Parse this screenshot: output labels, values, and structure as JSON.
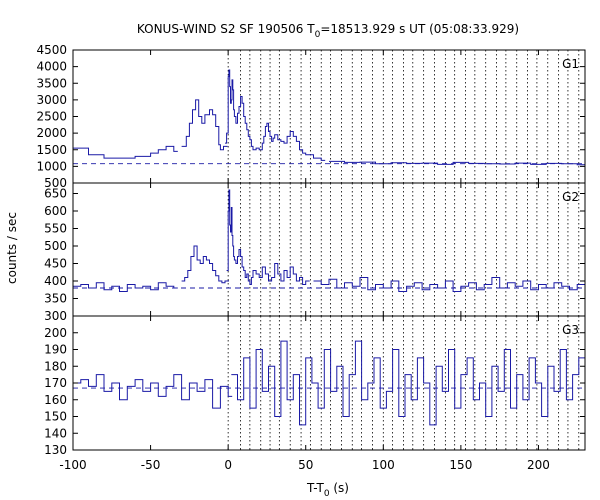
{
  "chart_data": {
    "type": "line",
    "title_main": "KONUS-WIND S2 SF 190506 T",
    "title_sub": "0",
    "title_rest": "=18513.929 s UT (05:08:33.929)",
    "xlabel_main": "T-T",
    "xlabel_sub": "0",
    "xlabel_rest": " (s)",
    "ylabel": "counts / sec",
    "xlim": [
      -100,
      230
    ],
    "xticks": [
      -100,
      -50,
      0,
      50,
      100,
      150,
      200
    ],
    "colors": {
      "line": "#1a1aa6",
      "axis": "#000000"
    },
    "vlines": [
      0,
      8,
      14,
      21,
      27,
      33,
      40,
      47,
      53,
      60,
      66,
      73,
      80,
      86,
      93,
      100,
      106,
      113,
      119,
      126,
      133,
      140,
      146,
      153,
      159,
      166,
      173,
      179,
      186,
      193,
      199,
      206,
      213,
      219,
      226
    ],
    "panels": [
      {
        "label": "G1",
        "ylim": [
          500,
          4500
        ],
        "yticks": [
          500,
          1000,
          1500,
          2000,
          2500,
          3000,
          3500,
          4000,
          4500
        ],
        "background": 1080,
        "segments": [
          {
            "x": [
              -100,
              -90,
              -80,
              -70,
              -60,
              -50,
              -45,
              -40,
              -35
            ],
            "y": [
              1550,
              1350,
              1250,
              1250,
              1300,
              1400,
              1500,
              1600,
              1450
            ]
          },
          {
            "x": [
              -30,
              -27,
              -25,
              -23,
              -21,
              -19,
              -17,
              -15,
              -12,
              -10,
              -8,
              -6,
              -5,
              -4,
              -3
            ],
            "y": [
              1600,
              1900,
              2300,
              2700,
              3000,
              2500,
              2300,
              2550,
              2700,
              2550,
              2200,
              1650,
              1500,
              1500,
              1600
            ]
          },
          {
            "x": [
              -2,
              -1,
              0,
              0.5,
              1,
              1.5,
              2,
              2.5,
              3,
              3.5,
              4,
              5,
              6,
              7,
              8,
              9,
              10,
              11,
              12,
              13,
              14,
              15,
              16,
              18,
              20,
              22,
              23,
              24,
              25,
              26,
              27,
              28,
              29,
              30,
              32,
              34,
              36,
              38,
              40,
              42,
              44,
              46,
              48,
              50,
              55,
              60
            ],
            "y": [
              1700,
              2000,
              3700,
              3900,
              3400,
              2900,
              3000,
              3600,
              3300,
              2700,
              2500,
              2300,
              2600,
              2800,
              3100,
              2900,
              2500,
              2300,
              2100,
              1900,
              1800,
              1600,
              1500,
              1550,
              1500,
              1700,
              1900,
              2200,
              2300,
              2050,
              1900,
              1750,
              1850,
              1950,
              1800,
              1750,
              1700,
              1900,
              2050,
              1900,
              1750,
              1500,
              1400,
              1350,
              1250,
              1180
            ]
          },
          {
            "x": [
              65,
              75,
              85,
              95,
              105,
              115,
              125,
              135,
              145,
              155,
              165,
              175,
              185,
              195,
              205,
              215,
              225,
              230
            ],
            "y": [
              1150,
              1120,
              1130,
              1080,
              1110,
              1090,
              1100,
              1060,
              1120,
              1090,
              1080,
              1070,
              1100,
              1060,
              1090,
              1080,
              1050,
              1040
            ]
          }
        ]
      },
      {
        "label": "G2",
        "ylim": [
          300,
          680
        ],
        "yticks": [
          300,
          350,
          400,
          450,
          500,
          550,
          600,
          650
        ],
        "background": 380,
        "segments": [
          {
            "x": [
              -100,
              -95,
              -90,
              -85,
              -80,
              -75,
              -70,
              -65,
              -60,
              -55,
              -50,
              -45,
              -40,
              -35
            ],
            "y": [
              385,
              390,
              380,
              395,
              375,
              385,
              370,
              390,
              380,
              385,
              375,
              395,
              385,
              380
            ]
          },
          {
            "x": [
              -30,
              -28,
              -26,
              -24,
              -22,
              -20,
              -18,
              -16,
              -14,
              -12,
              -10,
              -8,
              -6,
              -4,
              -2
            ],
            "y": [
              400,
              410,
              430,
              470,
              500,
              460,
              450,
              470,
              460,
              450,
              430,
              415,
              400,
              395,
              400
            ]
          },
          {
            "x": [
              -1,
              0,
              0.5,
              1,
              1.5,
              2,
              2.5,
              3,
              3.5,
              4,
              5,
              6,
              7,
              8,
              9,
              10,
              11,
              12,
              13,
              14,
              15,
              16,
              18,
              20,
              22,
              24,
              26,
              28,
              30,
              32,
              34,
              36,
              38,
              40,
              42,
              44,
              46,
              48,
              50
            ],
            "y": [
              430,
              600,
              660,
              560,
              540,
              610,
              530,
              500,
              470,
              460,
              450,
              470,
              490,
              470,
              440,
              430,
              410,
              420,
              400,
              390,
              410,
              430,
              420,
              410,
              440,
              420,
              400,
              410,
              450,
              420,
              400,
              430,
              410,
              440,
              420,
              400,
              410,
              390,
              400
            ]
          },
          {
            "x": [
              55,
              60,
              65,
              70,
              75,
              80,
              85,
              90,
              95,
              100,
              105,
              110,
              115,
              120,
              125,
              130,
              135,
              140,
              145,
              150,
              155,
              160,
              165,
              170,
              175,
              180,
              185,
              190,
              195,
              200,
              205,
              210,
              215,
              220,
              225,
              230
            ],
            "y": [
              400,
              390,
              405,
              380,
              395,
              385,
              410,
              375,
              390,
              380,
              400,
              370,
              385,
              395,
              375,
              390,
              380,
              400,
              370,
              385,
              395,
              375,
              390,
              410,
              380,
              395,
              385,
              400,
              375,
              390,
              380,
              395,
              385,
              375,
              390,
              380
            ]
          }
        ]
      },
      {
        "label": "G3",
        "ylim": [
          130,
          210
        ],
        "yticks": [
          130,
          140,
          150,
          160,
          170,
          180,
          190,
          200
        ],
        "background": 167,
        "segments": [
          {
            "x": [
              -100,
              -95,
              -90,
              -85,
              -80,
              -75,
              -70,
              -65,
              -60,
              -55,
              -50,
              -45,
              -40,
              -35,
              -30,
              -25,
              -20,
              -15,
              -10,
              -5,
              0
            ],
            "y": [
              170,
              172,
              168,
              175,
              165,
              170,
              160,
              168,
              172,
              165,
              170,
              162,
              168,
              175,
              160,
              170,
              165,
              172,
              155,
              168,
              162
            ]
          },
          {
            "x": [
              2,
              6,
              10,
              14,
              18,
              22,
              26,
              30,
              34,
              38,
              42,
              46,
              50,
              54,
              58,
              62,
              66,
              70,
              74,
              78,
              82,
              86,
              90,
              94,
              98,
              102,
              106,
              110,
              114,
              118,
              122,
              126,
              130,
              134,
              138,
              142,
              146,
              150,
              154,
              158,
              162,
              166,
              170,
              174,
              178,
              182,
              186,
              190,
              194,
              198,
              202,
              206,
              210,
              214,
              218,
              222,
              226,
              230
            ],
            "y": [
              175,
              160,
              185,
              155,
              190,
              165,
              180,
              150,
              195,
              160,
              175,
              145,
              185,
              170,
              155,
              190,
              165,
              180,
              150,
              175,
              195,
              160,
              170,
              185,
              155,
              165,
              190,
              150,
              175,
              160,
              185,
              170,
              145,
              180,
              165,
              190,
              155,
              175,
              185,
              160,
              170,
              150,
              180,
              165,
              190,
              155,
              175,
              160,
              185,
              170,
              150,
              180,
              165,
              190,
              160,
              175,
              185,
              170
            ]
          }
        ]
      }
    ]
  }
}
